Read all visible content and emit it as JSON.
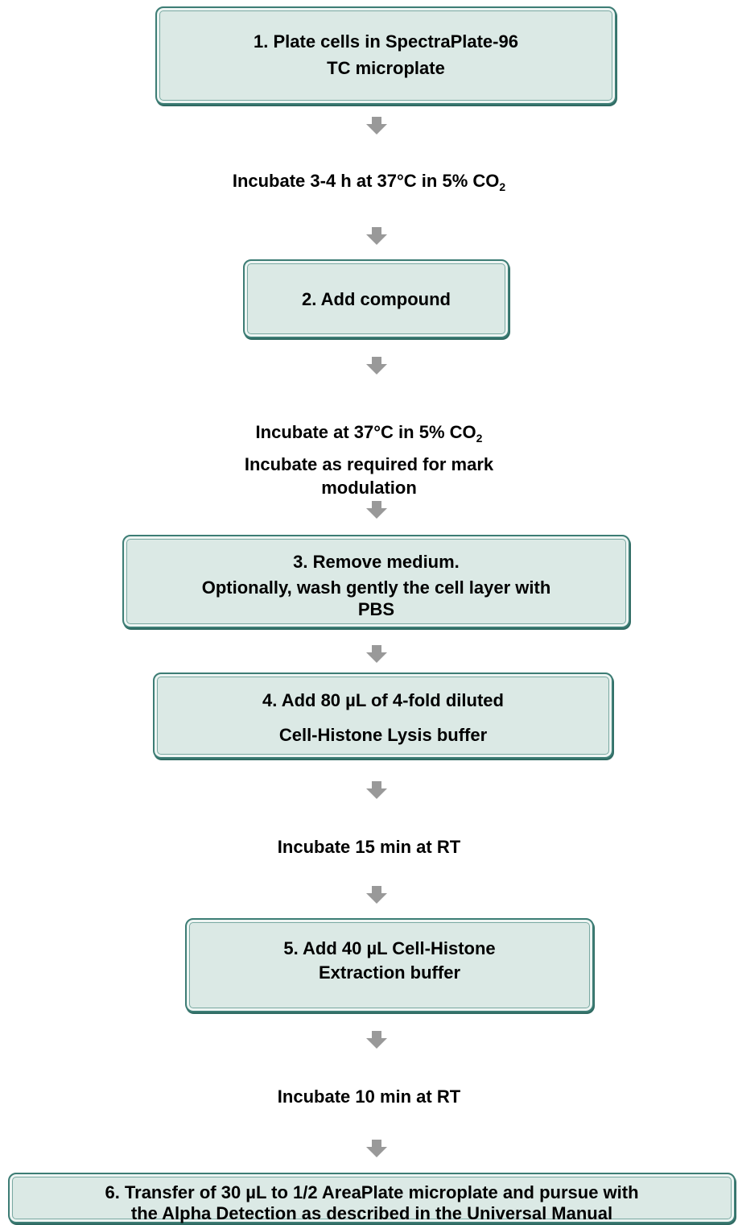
{
  "steps": [
    {
      "lines": [
        "1. Plate cells in SpectraPlate-96",
        "TC microplate"
      ]
    },
    {
      "lines": [
        "2. Add compound"
      ]
    },
    {
      "lines": [
        "3. Remove medium.",
        "Optionally, wash gently the cell layer with",
        "PBS"
      ]
    },
    {
      "lines": [
        "4. Add 80 µL of 4-fold diluted",
        "Cell-Histone Lysis buffer"
      ]
    },
    {
      "lines": [
        "5. Add 40 µL Cell-Histone",
        "Extraction buffer"
      ]
    },
    {
      "lines": [
        "6. Transfer of 30 µL to 1/2 AreaPlate microplate and pursue with",
        "the Alpha Detection as described in the Universal Manual"
      ]
    }
  ],
  "incubations": [
    {
      "lines": [
        {
          "text": "Incubate 3-4 h at 37°C in 5% CO",
          "sub": "2"
        }
      ]
    },
    {
      "lines": [
        {
          "text": "Incubate at 37°C in 5% CO",
          "sub": "2"
        },
        "Incubate as required for mark",
        "modulation"
      ]
    },
    {
      "lines": [
        "Incubate 15 min at RT"
      ]
    },
    {
      "lines": [
        "Incubate 10 min at RT"
      ]
    }
  ]
}
